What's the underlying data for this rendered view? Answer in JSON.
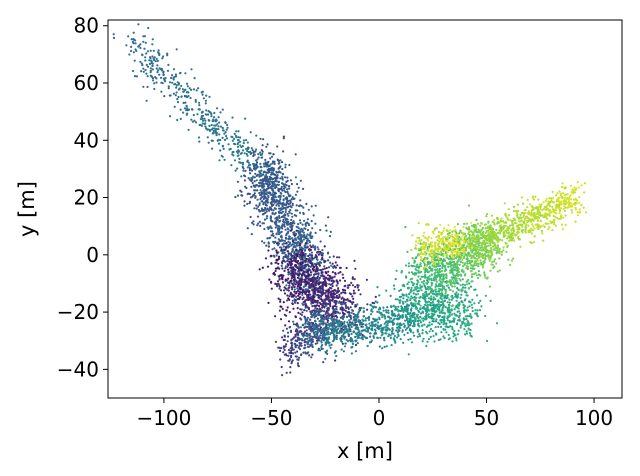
{
  "chart_data": {
    "type": "scatter",
    "title": "",
    "xlabel": "x [m]",
    "ylabel": "y [m]",
    "xlim": [
      -126,
      113
    ],
    "ylim": [
      -50,
      82
    ],
    "xticks": [
      -100,
      -50,
      0,
      50,
      100
    ],
    "yticks": [
      -40,
      -20,
      0,
      20,
      40,
      60,
      80
    ],
    "xtick_labels": [
      "−100",
      "−50",
      "0",
      "50",
      "100"
    ],
    "ytick_labels": [
      "−40",
      "−20",
      "0",
      "20",
      "40",
      "60",
      "80"
    ],
    "grid": false,
    "legend": "none",
    "colormap": "viridis",
    "marker_color_min": "#440154",
    "marker_color_max": "#fde725",
    "point_count_approx": 6000,
    "clusters": [
      {
        "from": [
          -115,
          74
        ],
        "to": [
          -45,
          22
        ],
        "spread": 3.5,
        "n": 500,
        "t": [
          0.35,
          0.42
        ]
      },
      {
        "from": [
          -55,
          30
        ],
        "to": [
          -30,
          -12
        ],
        "spread": 5.5,
        "n": 1200,
        "t": [
          0.25,
          0.33
        ]
      },
      {
        "from": [
          -42,
          -5
        ],
        "to": [
          -15,
          -20
        ],
        "spread": 6,
        "n": 900,
        "t": [
          0.06,
          0.14
        ]
      },
      {
        "from": [
          -45,
          -35
        ],
        "to": [
          -25,
          -22
        ],
        "spread": 4,
        "n": 300,
        "t": [
          0.18,
          0.26
        ]
      },
      {
        "from": [
          -30,
          -28
        ],
        "to": [
          15,
          -22
        ],
        "spread": 3.5,
        "n": 650,
        "t": [
          0.38,
          0.5
        ]
      },
      {
        "from": [
          12,
          -18
        ],
        "to": [
          42,
          -20
        ],
        "spread": 5,
        "n": 600,
        "t": [
          0.55,
          0.62
        ]
      },
      {
        "from": [
          18,
          -8
        ],
        "to": [
          55,
          5
        ],
        "spread": 5,
        "n": 900,
        "t": [
          0.66,
          0.82
        ]
      },
      {
        "from": [
          40,
          2
        ],
        "to": [
          92,
          20
        ],
        "spread": 3,
        "n": 700,
        "t": [
          0.82,
          0.94
        ]
      },
      {
        "from": [
          20,
          2
        ],
        "to": [
          38,
          4
        ],
        "spread": 3,
        "n": 250,
        "t": [
          0.9,
          0.97
        ]
      }
    ]
  }
}
